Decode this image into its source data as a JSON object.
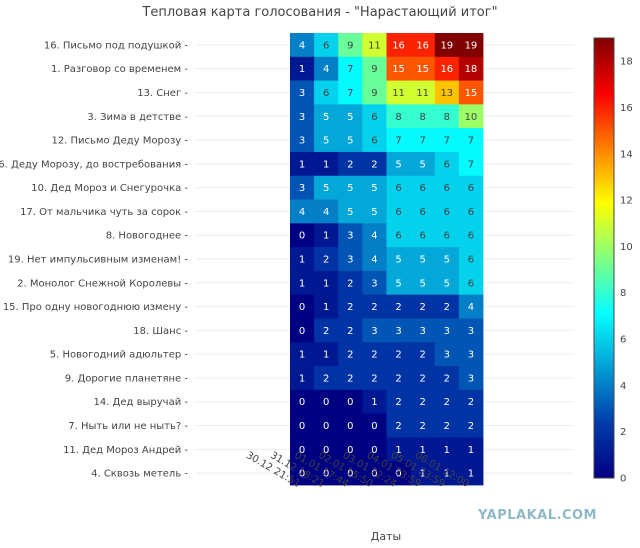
{
  "watermark": "YAPLAKAL.COM",
  "chart_data": {
    "type": "heatmap",
    "title": "Тепловая карта голосования - \"Нарастающий итог\"",
    "xlabel": "Даты",
    "ylabel": "",
    "x": [
      "30.12 21:51",
      "31.12 18:21",
      "01.01 17:44",
      "02.01 15:50",
      "03.01 22:24",
      "04.01 23:59",
      "05.01 23:59",
      "06.01 12:00"
    ],
    "y": [
      "16. Письмо под подушкой",
      "1. Разговор со временем",
      "13. Снег",
      "3. Зима в детстве",
      "12. Письмо Деду Морозу",
      "6. Деду Морозу, до востребования",
      "10. Дед Мороз и Снегурочка",
      "17. От мальчика чуть за сорок",
      "8. Новогоднее",
      "19. Нет импульсивным изменам!",
      "2. Монолог Снежной Королевы",
      "15. Про одну новогоднюю измену",
      "18. Шанс",
      "5. Новогодний адюльтер",
      "9. Дорогие планетяне",
      "14. Дед выручай",
      "7. Ныть или не ныть?",
      "11. Дед Мороз Андрей",
      "4. Сквозь метель"
    ],
    "z": [
      [
        4,
        6,
        9,
        11,
        16,
        16,
        19,
        19
      ],
      [
        1,
        4,
        7,
        9,
        15,
        15,
        16,
        18
      ],
      [
        3,
        6,
        7,
        9,
        11,
        11,
        13,
        15
      ],
      [
        3,
        5,
        5,
        6,
        8,
        8,
        8,
        10
      ],
      [
        3,
        5,
        5,
        6,
        7,
        7,
        7,
        7
      ],
      [
        1,
        1,
        2,
        2,
        5,
        5,
        6,
        7
      ],
      [
        3,
        5,
        5,
        5,
        6,
        6,
        6,
        6
      ],
      [
        4,
        4,
        5,
        5,
        6,
        6,
        6,
        6
      ],
      [
        0,
        1,
        3,
        4,
        6,
        6,
        6,
        6
      ],
      [
        1,
        2,
        3,
        4,
        5,
        5,
        5,
        6
      ],
      [
        1,
        1,
        2,
        3,
        5,
        5,
        5,
        6
      ],
      [
        0,
        1,
        2,
        2,
        2,
        2,
        2,
        4
      ],
      [
        0,
        2,
        2,
        3,
        3,
        3,
        3,
        3
      ],
      [
        1,
        1,
        2,
        2,
        2,
        2,
        3,
        3
      ],
      [
        1,
        2,
        2,
        2,
        2,
        2,
        2,
        3
      ],
      [
        0,
        0,
        0,
        1,
        2,
        2,
        2,
        2
      ],
      [
        0,
        0,
        0,
        0,
        2,
        2,
        2,
        2
      ],
      [
        0,
        0,
        0,
        0,
        1,
        1,
        1,
        1
      ],
      [
        0,
        0,
        0,
        0,
        0,
        1,
        1,
        1
      ]
    ],
    "zrange": [
      0,
      19
    ],
    "colorbar_ticks": [
      0,
      2,
      4,
      6,
      8,
      10,
      12,
      14,
      16,
      18
    ],
    "colorscale": "jet",
    "grid": true
  }
}
